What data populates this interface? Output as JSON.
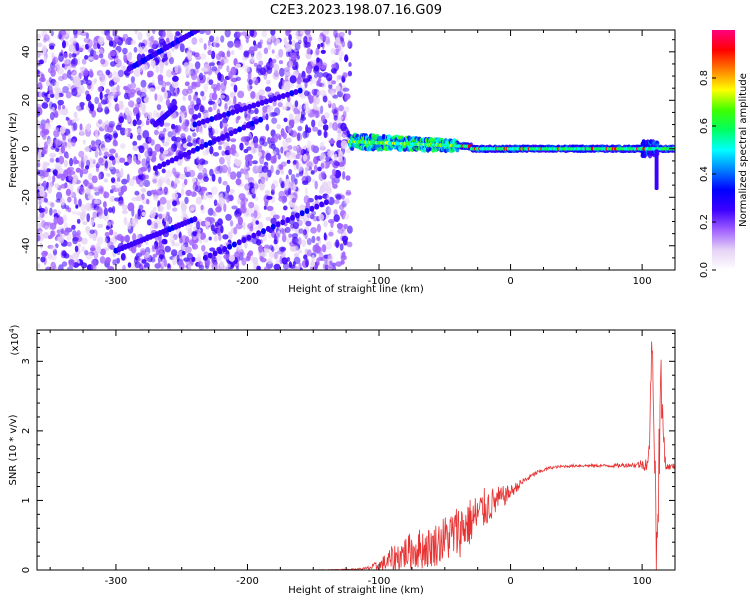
{
  "title": "C2E3.2023.198.07.16.G09",
  "chart_data": [
    {
      "type": "heatmap",
      "xlabel": "Height of straight line (km)",
      "ylabel": "Frequency (Hz)",
      "xlim": [
        -360,
        125
      ],
      "ylim": [
        -50,
        49
      ],
      "x_ticks": [
        -300,
        -200,
        -100,
        0,
        100
      ],
      "y_ticks": [
        -40,
        -20,
        0,
        20,
        40
      ],
      "colorbar": {
        "label": "Normalized spectral amplitude",
        "range": [
          0,
          1
        ],
        "ticks": [
          "0.0",
          "0.2",
          "0.4",
          "0.6",
          "0.8"
        ],
        "colors": [
          "#ffffff",
          "#e6d2f5",
          "#a060ff",
          "#3c00ff",
          "#0000ff",
          "#0080ff",
          "#00ffff",
          "#00ff60",
          "#40ff00",
          "#ffff00",
          "#ff8000",
          "#ff0000",
          "#ff0080"
        ]
      },
      "regions": {
        "noise_x_range": [
          -360,
          -122
        ],
        "signal_x_range": [
          -122,
          125
        ],
        "signal_center_freq_hz": 0
      },
      "streak_lines": [
        {
          "x": [
            -290,
            -238
          ],
          "y": [
            33,
            49
          ]
        },
        {
          "x": [
            -270,
            -255
          ],
          "y": [
            10,
            17
          ]
        },
        {
          "x": [
            -240,
            -160
          ],
          "y": [
            10,
            24
          ]
        },
        {
          "x": [
            -270,
            -190
          ],
          "y": [
            -8,
            12
          ]
        },
        {
          "x": [
            -232,
            -140
          ],
          "y": [
            -45,
            -22
          ]
        },
        {
          "x": [
            -300,
            -240
          ],
          "y": [
            -42,
            -29
          ]
        }
      ]
    },
    {
      "type": "line",
      "xlabel": "Height of straight line (km)",
      "ylabel": "SNR (10 * v/v)",
      "y_multiplier": "(x10",
      "y_multiplier_exp": "4",
      "y_multiplier_close": ")",
      "xlim": [
        -360,
        125
      ],
      "ylim": [
        0,
        3.45
      ],
      "x_ticks": [
        -300,
        -200,
        -100,
        0,
        100
      ],
      "y_ticks": [
        0,
        1,
        2,
        3
      ],
      "series": [
        {
          "color": "#e83232",
          "x": [
            -360,
            -150,
            -122,
            -110,
            -100,
            -90,
            -80,
            -70,
            -60,
            -50,
            -40,
            -30,
            -20,
            -10,
            0,
            10,
            20,
            30,
            40,
            50,
            60,
            70,
            80,
            90,
            95,
            100,
            105,
            108,
            111,
            114,
            118,
            125
          ],
          "y": [
            0.0,
            0.0,
            0.01,
            0.02,
            0.06,
            0.15,
            0.25,
            0.3,
            0.33,
            0.45,
            0.55,
            0.7,
            0.88,
            1.0,
            1.12,
            1.28,
            1.4,
            1.47,
            1.49,
            1.5,
            1.5,
            1.5,
            1.5,
            1.51,
            1.51,
            1.52,
            1.55,
            3.4,
            0.1,
            2.6,
            1.48,
            1.49
          ],
          "noise": [
            0.002,
            0.002,
            0.005,
            0.02,
            0.08,
            0.2,
            0.25,
            0.3,
            0.3,
            0.35,
            0.4,
            0.35,
            0.3,
            0.2,
            0.1,
            0.05,
            0.03,
            0.02,
            0.02,
            0.02,
            0.02,
            0.02,
            0.03,
            0.03,
            0.04,
            0.08,
            0.15,
            0.6,
            0.6,
            0.6,
            0.05,
            0.04
          ]
        }
      ]
    }
  ]
}
